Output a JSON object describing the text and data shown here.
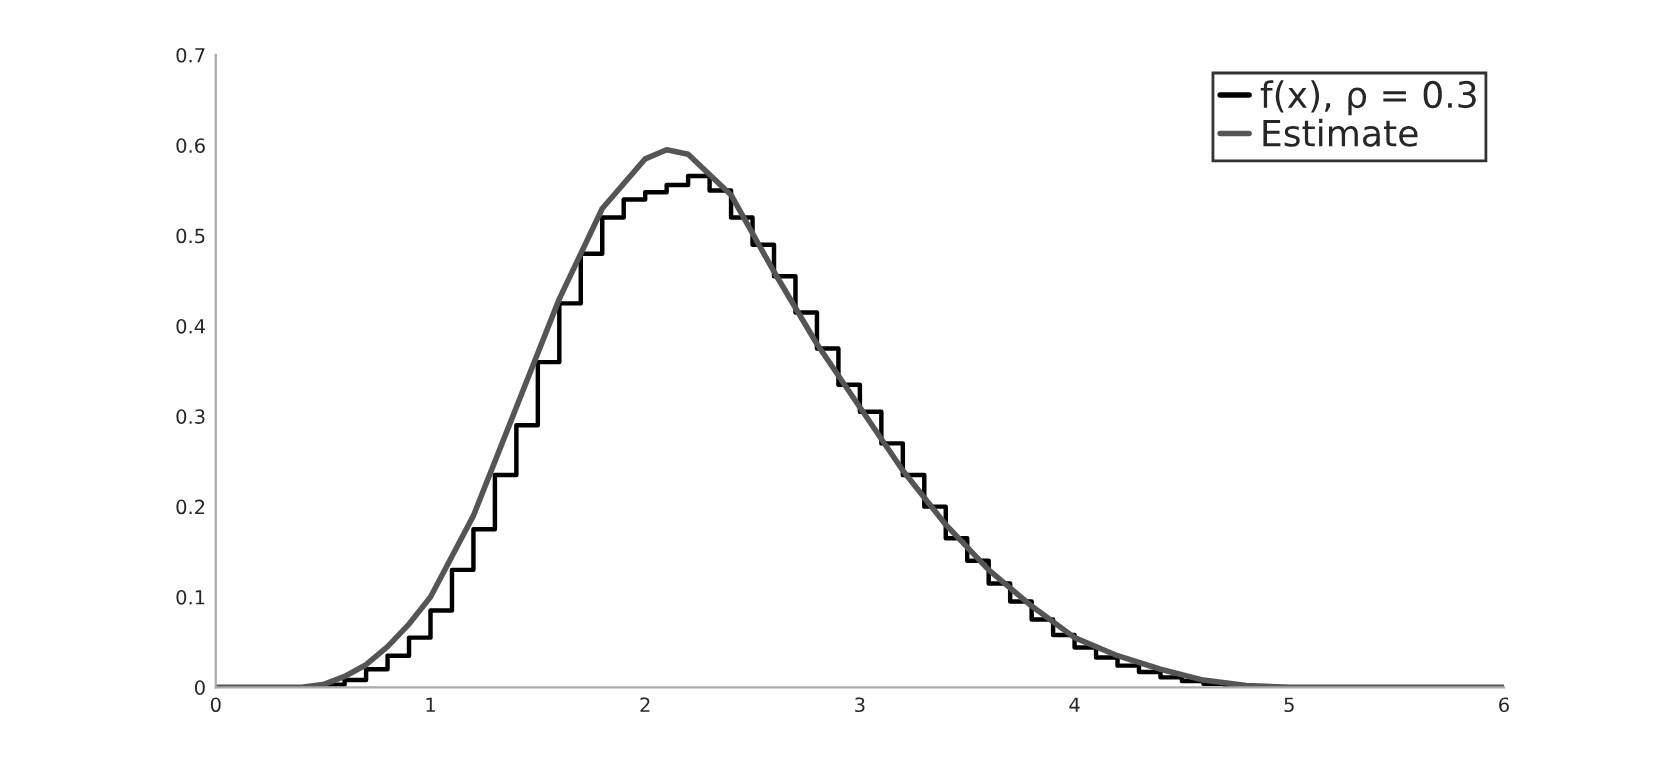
{
  "chart_data": {
    "type": "line",
    "series": [
      {
        "name": "f(x), ρ = 0.3",
        "type": "step",
        "color": "#000000",
        "x": [
          0,
          0.5,
          0.6,
          0.7,
          0.8,
          0.9,
          1.0,
          1.1,
          1.2,
          1.3,
          1.4,
          1.5,
          1.6,
          1.7,
          1.8,
          1.9,
          2.0,
          2.1,
          2.2,
          2.3,
          2.4,
          2.5,
          2.6,
          2.7,
          2.8,
          2.9,
          3.0,
          3.1,
          3.2,
          3.3,
          3.4,
          3.5,
          3.6,
          3.7,
          3.8,
          3.9,
          4.0,
          4.1,
          4.2,
          4.3,
          4.4,
          4.5,
          4.6,
          4.7,
          4.8,
          4.9,
          6
        ],
        "values": [
          0,
          0.003,
          0.008,
          0.02,
          0.035,
          0.055,
          0.085,
          0.13,
          0.175,
          0.235,
          0.29,
          0.36,
          0.425,
          0.48,
          0.52,
          0.54,
          0.548,
          0.556,
          0.566,
          0.55,
          0.52,
          0.49,
          0.455,
          0.415,
          0.375,
          0.335,
          0.305,
          0.27,
          0.235,
          0.2,
          0.165,
          0.14,
          0.115,
          0.095,
          0.075,
          0.058,
          0.044,
          0.033,
          0.024,
          0.017,
          0.011,
          0.007,
          0.004,
          0.002,
          0.001,
          0,
          0
        ]
      },
      {
        "name": "Estimate",
        "color": "#555555",
        "x": [
          0,
          0.4,
          0.5,
          0.6,
          0.7,
          0.8,
          0.9,
          1.0,
          1.2,
          1.4,
          1.6,
          1.8,
          2.0,
          2.1,
          2.2,
          2.4,
          2.6,
          2.8,
          3.0,
          3.2,
          3.4,
          3.6,
          3.8,
          4.0,
          4.2,
          4.4,
          4.6,
          4.8,
          5.0,
          6
        ],
        "values": [
          0,
          0,
          0.003,
          0.012,
          0.025,
          0.045,
          0.07,
          0.1,
          0.19,
          0.31,
          0.43,
          0.53,
          0.585,
          0.595,
          0.59,
          0.545,
          0.46,
          0.38,
          0.31,
          0.24,
          0.18,
          0.13,
          0.09,
          0.055,
          0.035,
          0.02,
          0.008,
          0.002,
          0,
          0
        ]
      }
    ],
    "xlim": [
      0,
      6
    ],
    "xticks": [
      0,
      1,
      2,
      3,
      4,
      5,
      6
    ],
    "ylim": [
      0,
      0.7
    ],
    "yticks": [
      0,
      0.1,
      0.2,
      0.3,
      0.4,
      0.5,
      0.6,
      0.7
    ],
    "grid": false,
    "legend": "top right"
  }
}
